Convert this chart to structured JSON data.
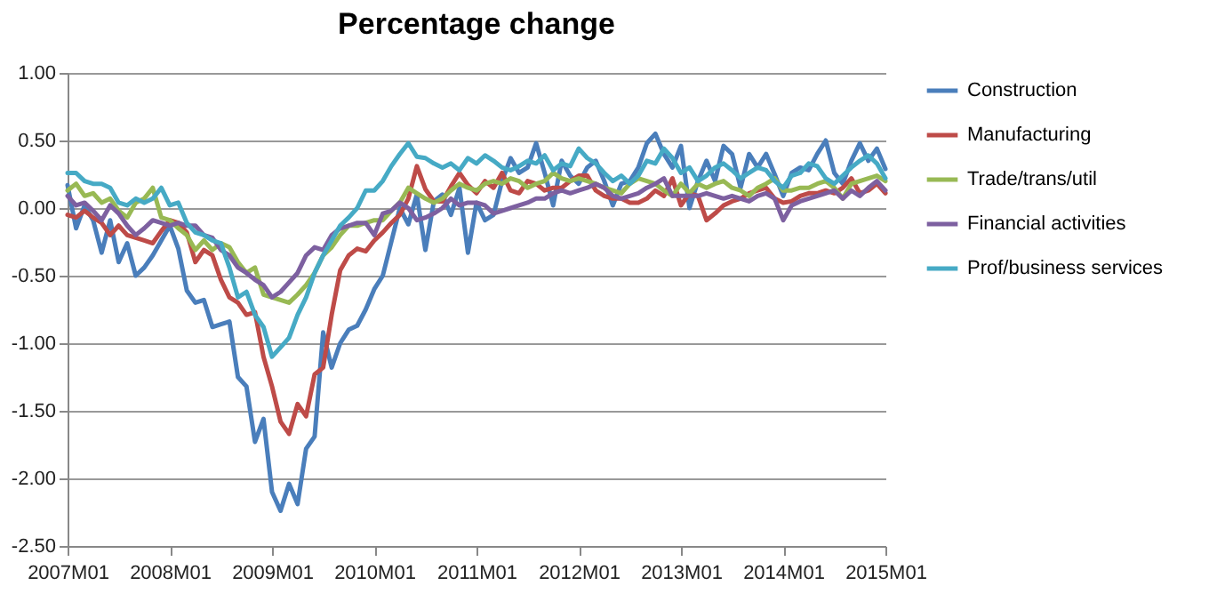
{
  "chart_data": {
    "type": "line",
    "title": "Percentage change",
    "categories": [
      "2007M01",
      null,
      null,
      null,
      null,
      null,
      null,
      null,
      null,
      null,
      null,
      null,
      "2008M01",
      null,
      null,
      null,
      null,
      null,
      null,
      null,
      null,
      null,
      null,
      null,
      "2009M01",
      null,
      null,
      null,
      null,
      null,
      null,
      null,
      null,
      null,
      null,
      null,
      "2010M01",
      null,
      null,
      null,
      null,
      null,
      null,
      null,
      null,
      null,
      null,
      null,
      "2011M01",
      null,
      null,
      null,
      null,
      null,
      null,
      null,
      null,
      null,
      null,
      null,
      "2012M01",
      null,
      null,
      null,
      null,
      null,
      null,
      null,
      null,
      null,
      null,
      null,
      "2013M01",
      null,
      null,
      null,
      null,
      null,
      null,
      null,
      null,
      null,
      null,
      null,
      "2014M01",
      null,
      null,
      null,
      null,
      null,
      null,
      null,
      null,
      null,
      null,
      null,
      "2015M01"
    ],
    "series": [
      {
        "name": "Construction",
        "color": "#4a7ebb",
        "values": [
          0.17,
          -0.15,
          0.02,
          -0.09,
          -0.33,
          -0.09,
          -0.4,
          -0.26,
          -0.5,
          -0.44,
          -0.35,
          -0.24,
          -0.13,
          -0.3,
          -0.61,
          -0.7,
          -0.68,
          -0.88,
          -0.86,
          -0.84,
          -1.25,
          -1.32,
          -1.73,
          -1.56,
          -2.1,
          -2.24,
          -2.04,
          -2.19,
          -1.78,
          -1.69,
          -0.92,
          -1.18,
          -1.0,
          -0.9,
          -0.87,
          -0.75,
          -0.6,
          -0.5,
          -0.25,
          0.0,
          -0.12,
          0.1,
          -0.31,
          0.05,
          0.1,
          -0.05,
          0.15,
          -0.33,
          0.04,
          -0.09,
          -0.05,
          0.2,
          0.37,
          0.26,
          0.3,
          0.48,
          0.26,
          0.02,
          0.35,
          0.24,
          0.18,
          0.3,
          0.35,
          0.2,
          0.02,
          0.18,
          0.2,
          0.3,
          0.48,
          0.55,
          0.4,
          0.3,
          0.46,
          0.0,
          0.2,
          0.35,
          0.2,
          0.46,
          0.4,
          0.15,
          0.4,
          0.3,
          0.4,
          0.25,
          0.09,
          0.26,
          0.3,
          0.28,
          0.4,
          0.5,
          0.26,
          0.18,
          0.35,
          0.48,
          0.35,
          0.44,
          0.29
        ]
      },
      {
        "name": "Manufacturing",
        "color": "#be4b48",
        "values": [
          -0.05,
          -0.07,
          -0.02,
          -0.07,
          -0.11,
          -0.2,
          -0.13,
          -0.2,
          -0.22,
          -0.24,
          -0.26,
          -0.17,
          -0.09,
          -0.11,
          -0.18,
          -0.4,
          -0.31,
          -0.35,
          -0.53,
          -0.66,
          -0.7,
          -0.79,
          -0.77,
          -1.1,
          -1.32,
          -1.58,
          -1.67,
          -1.45,
          -1.54,
          -1.23,
          -1.18,
          -0.79,
          -0.46,
          -0.35,
          -0.3,
          -0.32,
          -0.24,
          -0.18,
          -0.11,
          -0.05,
          0.07,
          0.31,
          0.14,
          0.05,
          0.05,
          0.16,
          0.26,
          0.17,
          0.11,
          0.2,
          0.15,
          0.26,
          0.13,
          0.11,
          0.2,
          0.18,
          0.13,
          0.15,
          0.15,
          0.2,
          0.24,
          0.24,
          0.13,
          0.09,
          0.07,
          0.07,
          0.04,
          0.04,
          0.07,
          0.13,
          0.09,
          0.22,
          0.02,
          0.11,
          0.09,
          -0.09,
          -0.04,
          0.02,
          0.05,
          0.07,
          0.11,
          0.13,
          0.15,
          0.07,
          0.04,
          0.05,
          0.09,
          0.11,
          0.11,
          0.13,
          0.11,
          0.15,
          0.22,
          0.11,
          0.13,
          0.18,
          0.11
        ]
      },
      {
        "name": "Trade/trans/util",
        "color": "#98b954",
        "values": [
          0.13,
          0.18,
          0.09,
          0.11,
          0.04,
          0.07,
          -0.02,
          -0.07,
          0.04,
          0.07,
          0.15,
          -0.07,
          -0.09,
          -0.15,
          -0.2,
          -0.31,
          -0.24,
          -0.31,
          -0.26,
          -0.29,
          -0.4,
          -0.48,
          -0.44,
          -0.64,
          -0.66,
          -0.68,
          -0.7,
          -0.64,
          -0.57,
          -0.48,
          -0.35,
          -0.29,
          -0.2,
          -0.13,
          -0.13,
          -0.11,
          -0.09,
          -0.09,
          -0.02,
          0.04,
          0.15,
          0.11,
          0.07,
          0.04,
          0.07,
          0.13,
          0.18,
          0.15,
          0.13,
          0.18,
          0.2,
          0.18,
          0.22,
          0.2,
          0.15,
          0.18,
          0.2,
          0.26,
          0.22,
          0.2,
          0.22,
          0.2,
          0.18,
          0.15,
          0.13,
          0.11,
          0.18,
          0.22,
          0.2,
          0.18,
          0.13,
          0.09,
          0.18,
          0.11,
          0.18,
          0.15,
          0.18,
          0.2,
          0.15,
          0.13,
          0.09,
          0.15,
          0.18,
          0.22,
          0.13,
          0.13,
          0.15,
          0.15,
          0.18,
          0.2,
          0.15,
          0.07,
          0.18,
          0.2,
          0.22,
          0.24,
          0.2
        ]
      },
      {
        "name": "Financial activities",
        "color": "#7d60a0",
        "values": [
          0.09,
          0.02,
          0.04,
          -0.02,
          -0.09,
          0.02,
          -0.04,
          -0.13,
          -0.2,
          -0.15,
          -0.09,
          -0.11,
          -0.13,
          -0.11,
          -0.13,
          -0.13,
          -0.2,
          -0.22,
          -0.31,
          -0.35,
          -0.44,
          -0.48,
          -0.53,
          -0.57,
          -0.66,
          -0.62,
          -0.55,
          -0.48,
          -0.35,
          -0.29,
          -0.31,
          -0.2,
          -0.15,
          -0.13,
          -0.11,
          -0.11,
          -0.2,
          -0.04,
          -0.02,
          0.04,
          0.0,
          -0.09,
          -0.07,
          -0.04,
          0.0,
          0.07,
          0.02,
          0.04,
          0.04,
          0.02,
          -0.04,
          -0.02,
          0.0,
          0.02,
          0.04,
          0.07,
          0.07,
          0.11,
          0.13,
          0.11,
          0.13,
          0.15,
          0.18,
          0.15,
          0.09,
          0.07,
          0.09,
          0.11,
          0.15,
          0.18,
          0.22,
          0.09,
          0.09,
          0.09,
          0.09,
          0.11,
          0.09,
          0.07,
          0.09,
          0.07,
          0.05,
          0.09,
          0.11,
          0.07,
          -0.09,
          0.02,
          0.05,
          0.07,
          0.09,
          0.11,
          0.13,
          0.07,
          0.13,
          0.09,
          0.15,
          0.2,
          0.13
        ]
      },
      {
        "name": "Prof/business services",
        "color": "#46aac5",
        "values": [
          0.26,
          0.26,
          0.2,
          0.18,
          0.18,
          0.15,
          0.04,
          0.02,
          0.07,
          0.04,
          0.07,
          0.15,
          0.02,
          0.04,
          -0.11,
          -0.18,
          -0.2,
          -0.24,
          -0.26,
          -0.44,
          -0.66,
          -0.62,
          -0.79,
          -0.88,
          -1.1,
          -1.03,
          -0.96,
          -0.79,
          -0.66,
          -0.48,
          -0.35,
          -0.24,
          -0.13,
          -0.07,
          0.0,
          0.13,
          0.13,
          0.2,
          0.31,
          0.4,
          0.48,
          0.38,
          0.37,
          0.33,
          0.3,
          0.33,
          0.28,
          0.37,
          0.33,
          0.39,
          0.35,
          0.3,
          0.28,
          0.31,
          0.35,
          0.33,
          0.39,
          0.28,
          0.33,
          0.31,
          0.44,
          0.37,
          0.33,
          0.26,
          0.2,
          0.24,
          0.18,
          0.24,
          0.35,
          0.33,
          0.44,
          0.37,
          0.26,
          0.3,
          0.2,
          0.24,
          0.3,
          0.33,
          0.28,
          0.22,
          0.26,
          0.3,
          0.28,
          0.2,
          0.15,
          0.24,
          0.26,
          0.33,
          0.31,
          0.22,
          0.18,
          0.24,
          0.3,
          0.35,
          0.39,
          0.33,
          0.22
        ]
      }
    ],
    "ylim": [
      -2.5,
      1.0
    ],
    "yticks": [
      {
        "value": -2.5,
        "label": "-2.50"
      },
      {
        "value": -2.0,
        "label": "-2.00"
      },
      {
        "value": -1.5,
        "label": "-1.50"
      },
      {
        "value": -1.0,
        "label": "-1.00"
      },
      {
        "value": -0.5,
        "label": "-0.50"
      },
      {
        "value": 0,
        "label": "0.00"
      },
      {
        "value": 0.5,
        "label": "0.50"
      },
      {
        "value": 1.0,
        "label": "1.00"
      }
    ],
    "grid": "y",
    "legend": "right"
  }
}
